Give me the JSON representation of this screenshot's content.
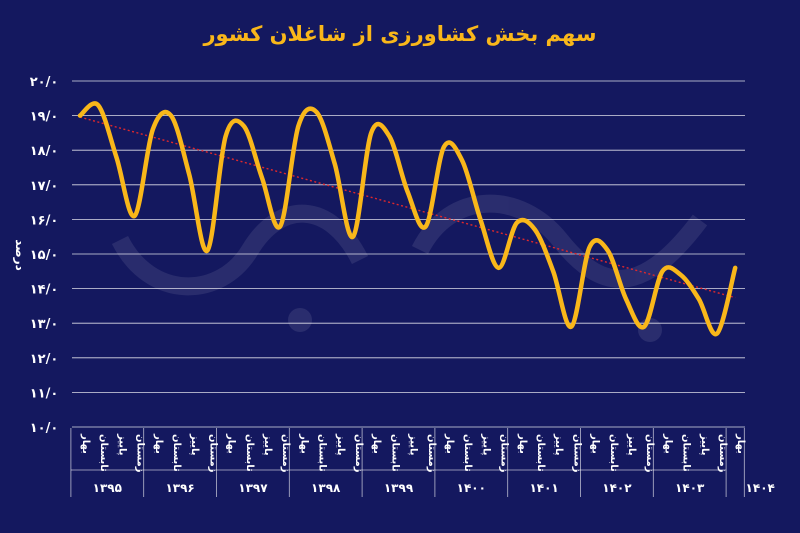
{
  "colors": {
    "background": "#14185f",
    "line": "#f9b71a",
    "trend": "#e0282c",
    "grid": "#ffffff",
    "text": "#ffffff",
    "title": "#f9b71a"
  },
  "chart_data": {
    "type": "line",
    "title": "سهم بخش کشاورزی از شاغلان کشور",
    "ylabel": "درصد",
    "xlabel": "",
    "ylim": [
      10,
      20
    ],
    "yticks": [
      "۱۰/۰",
      "۱۱/۰",
      "۱۲/۰",
      "۱۳/۰",
      "۱۴/۰",
      "۱۵/۰",
      "۱۶/۰",
      "۱۷/۰",
      "۱۸/۰",
      "۱۹/۰",
      "۲۰/۰"
    ],
    "grid": true,
    "trendline": true,
    "seasons": [
      "بهار",
      "تابستان",
      "پاییز",
      "زمستان"
    ],
    "years": [
      "۱۳۹۵",
      "۱۳۹۶",
      "۱۳۹۷",
      "۱۳۹۸",
      "۱۳۹۹",
      "۱۴۰۰",
      "۱۴۰۱",
      "۱۴۰۲",
      "۱۴۰۳",
      "۱۴۰۴"
    ],
    "categories": [
      "۱۳۹۵ بهار",
      "۱۳۹۵ تابستان",
      "۱۳۹۵ پاییز",
      "۱۳۹۵ زمستان",
      "۱۳۹۶ بهار",
      "۱۳۹۶ تابستان",
      "۱۳۹۶ پاییز",
      "۱۳۹۶ زمستان",
      "۱۳۹۷ بهار",
      "۱۳۹۷ تابستان",
      "۱۳۹۷ پاییز",
      "۱۳۹۷ زمستان",
      "۱۳۹۸ بهار",
      "۱۳۹۸ تابستان",
      "۱۳۹۸ پاییز",
      "۱۳۹۸ زمستان",
      "۱۳۹۹ بهار",
      "۱۳۹۹ تابستان",
      "۱۳۹۹ پاییز",
      "۱۳۹۹ زمستان",
      "۱۴۰۰ بهار",
      "۱۴۰۰ تابستان",
      "۱۴۰۰ پاییز",
      "۱۴۰۰ زمستان",
      "۱۴۰۱ بهار",
      "۱۴۰۱ تابستان",
      "۱۴۰۱ پاییز",
      "۱۴۰۱ زمستان",
      "۱۴۰۲ بهار",
      "۱۴۰۲ تابستان",
      "۱۴۰۲ پاییز",
      "۱۴۰۲ زمستان",
      "۱۴۰۳ بهار",
      "۱۴۰۳ تابستان",
      "۱۴۰۳ پاییز",
      "۱۴۰۳ زمستان",
      "۱۴۰۴ بهار"
    ],
    "values": [
      19.0,
      19.3,
      17.8,
      16.1,
      18.6,
      19.0,
      17.3,
      15.1,
      18.4,
      18.7,
      17.2,
      15.8,
      18.7,
      19.1,
      17.6,
      15.5,
      18.5,
      18.4,
      16.8,
      15.8,
      18.1,
      17.7,
      16.0,
      14.6,
      15.9,
      15.7,
      14.5,
      12.9,
      15.2,
      15.1,
      13.7,
      12.9,
      14.5,
      14.4,
      13.7,
      12.7,
      14.6
    ]
  }
}
